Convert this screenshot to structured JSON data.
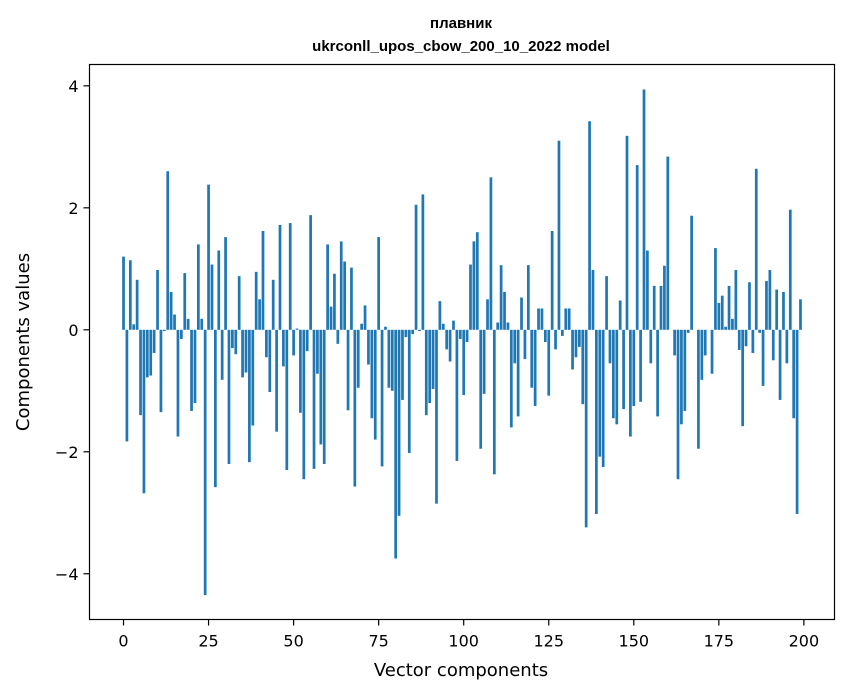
{
  "chart_data": {
    "type": "bar",
    "title": "плавник",
    "subtitle": "ukrconll_upos_cbow_200_10_2022 model",
    "xlabel": "Vector components",
    "ylabel": "Components values",
    "xlim": [
      -10,
      209
    ],
    "ylim": [
      -4.75,
      4.35
    ],
    "xticks": [
      0,
      25,
      50,
      75,
      100,
      125,
      150,
      175,
      200
    ],
    "xtick_labels": [
      "0",
      "25",
      "50",
      "75",
      "100",
      "125",
      "150",
      "175",
      "200"
    ],
    "yticks": [
      -4,
      -2,
      0,
      2,
      4
    ],
    "ytick_labels": [
      "−4",
      "−2",
      "0",
      "2",
      "4"
    ],
    "grid": false,
    "bar_color": "#1f77b4",
    "x": [
      0,
      1,
      2,
      3,
      4,
      5,
      6,
      7,
      8,
      9,
      10,
      11,
      12,
      13,
      14,
      15,
      16,
      17,
      18,
      19,
      20,
      21,
      22,
      23,
      24,
      25,
      26,
      27,
      28,
      29,
      30,
      31,
      32,
      33,
      34,
      35,
      36,
      37,
      38,
      39,
      40,
      41,
      42,
      43,
      44,
      45,
      46,
      47,
      48,
      49,
      50,
      51,
      52,
      53,
      54,
      55,
      56,
      57,
      58,
      59,
      60,
      61,
      62,
      63,
      64,
      65,
      66,
      67,
      68,
      69,
      70,
      71,
      72,
      73,
      74,
      75,
      76,
      77,
      78,
      79,
      80,
      81,
      82,
      83,
      84,
      85,
      86,
      87,
      88,
      89,
      90,
      91,
      92,
      93,
      94,
      95,
      96,
      97,
      98,
      99,
      100,
      101,
      102,
      103,
      104,
      105,
      106,
      107,
      108,
      109,
      110,
      111,
      112,
      113,
      114,
      115,
      116,
      117,
      118,
      119,
      120,
      121,
      122,
      123,
      124,
      125,
      126,
      127,
      128,
      129,
      130,
      131,
      132,
      133,
      134,
      135,
      136,
      137,
      138,
      139,
      140,
      141,
      142,
      143,
      144,
      145,
      146,
      147,
      148,
      149,
      150,
      151,
      152,
      153,
      154,
      155,
      156,
      157,
      158,
      159,
      160,
      161,
      162,
      163,
      164,
      165,
      166,
      167,
      168,
      169,
      170,
      171,
      172,
      173,
      174,
      175,
      176,
      177,
      178,
      179,
      180,
      181,
      182,
      183,
      184,
      185,
      186,
      187,
      188,
      189,
      190,
      191,
      192,
      193,
      194,
      195,
      196,
      197,
      198,
      199
    ],
    "values": [
      1.2,
      -1.83,
      1.14,
      0.09,
      0.82,
      -1.4,
      -2.68,
      -0.78,
      -0.75,
      -0.38,
      0.98,
      -1.35,
      -0.02,
      2.6,
      0.62,
      0.25,
      -1.75,
      -0.15,
      0.93,
      0.18,
      -1.33,
      -1.2,
      1.4,
      0.18,
      -4.35,
      2.38,
      1.07,
      -2.58,
      1.3,
      -0.82,
      1.52,
      -2.2,
      -0.3,
      -0.4,
      0.88,
      -0.78,
      -0.7,
      -2.17,
      -1.57,
      0.95,
      0.5,
      1.62,
      -0.45,
      -1.02,
      0.82,
      -1.67,
      1.72,
      -0.6,
      -2.3,
      1.75,
      -0.42,
      0.02,
      -1.36,
      -2.45,
      -0.35,
      1.88,
      -2.28,
      -0.72,
      -1.88,
      -2.2,
      1.4,
      0.38,
      0.92,
      -0.23,
      1.45,
      1.12,
      -1.32,
      1.02,
      -2.57,
      -0.95,
      0.1,
      0.4,
      -0.57,
      -1.45,
      -1.8,
      1.52,
      -2.24,
      0.05,
      -0.95,
      -1.0,
      -3.75,
      -3.05,
      -1.15,
      -0.12,
      -2.02,
      -0.07,
      2.05,
      -0.02,
      2.22,
      -1.4,
      -1.2,
      -0.97,
      -2.85,
      0.47,
      0.1,
      -0.32,
      -0.52,
      0.15,
      -2.15,
      -0.15,
      -1.07,
      -0.2,
      1.07,
      1.45,
      1.6,
      -1.95,
      -1.05,
      0.5,
      2.5,
      -2.37,
      0.12,
      1.06,
      0.62,
      0.12,
      -1.6,
      -0.55,
      -1.42,
      0.53,
      -0.48,
      1.06,
      -0.95,
      -1.25,
      0.35,
      0.35,
      -0.2,
      -1.08,
      1.62,
      -0.32,
      3.1,
      -0.1,
      0.35,
      0.35,
      -0.65,
      -0.45,
      -0.28,
      -1.22,
      -3.24,
      3.42,
      0.98,
      -3.02,
      -2.08,
      -2.25,
      0.88,
      -0.55,
      -1.45,
      -1.55,
      0.48,
      -1.3,
      3.18,
      -1.75,
      -1.25,
      2.7,
      -1.18,
      3.94,
      1.3,
      -0.55,
      0.72,
      -1.42,
      0.72,
      1.05,
      2.84,
      0.0,
      -0.42,
      -2.45,
      -1.55,
      -1.33,
      -0.05,
      1.87,
      0.0,
      -1.95,
      -0.82,
      -0.42,
      0.0,
      -0.72,
      1.34,
      0.44,
      0.56,
      0.05,
      0.72,
      0.18,
      0.98,
      -0.33,
      -1.58,
      -0.27,
      0.78,
      -0.38,
      2.64,
      -0.05,
      -0.92,
      0.8,
      0.98,
      -0.5,
      0.66,
      -1.15,
      0.62,
      -0.55,
      1.97,
      -1.45,
      -3.02,
      0.5
    ]
  }
}
